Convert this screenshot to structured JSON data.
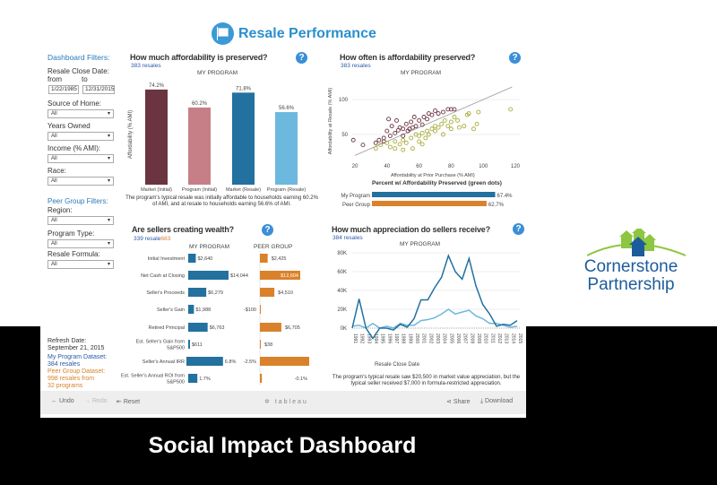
{
  "header": {
    "title": "Resale Performance",
    "icon": "for-sale-sign-icon"
  },
  "sidebar": {
    "dashboard_filters": "Dashboard Filters:",
    "resale_close_date": "Resale Close Date:",
    "from": "from",
    "to": "to",
    "from_value": "1/22/1985",
    "to_value": "12/31/2015",
    "source_of_home": "Source of Home:",
    "source_value": "All",
    "years_owned": "Years Owned",
    "years_value": "All",
    "income": "Income (% AMI):",
    "income_value": "All",
    "race": "Race:",
    "race_value": "All",
    "peer_filters": "Peer Group Filters:",
    "region": "Region:",
    "region_value": "All",
    "program_type": "Program Type:",
    "program_type_value": "All",
    "resale_formula": "Resale Formula:",
    "resale_formula_value": "All",
    "refresh_label": "Refresh Date:",
    "refresh_date": "September 21, 2015",
    "my_dataset_label": "My Program Dataset:",
    "my_dataset_value": "384 resales",
    "peer_dataset_label": "Peer Group Dataset:",
    "peer_dataset_value1": "998 resales from",
    "peer_dataset_value2": "32 programs"
  },
  "colors": {
    "blue": "#23719f",
    "lightblue": "#6cb8de",
    "maroon": "#6b3441",
    "pink": "#c77f87",
    "orange": "#d9822b",
    "olive": "#a8ad3a",
    "accent": "#2a8fcf"
  },
  "chart_data": [
    {
      "id": "affordability",
      "type": "bar",
      "title": "How much affordability is preserved?",
      "subtitle": "383 resales",
      "panel_label": "MY PROGRAM",
      "ylabel": "Affordability (% AMI)",
      "categories": [
        "Market (Initial)",
        "Program (Initial)",
        "Market (Resale)",
        "Program (Resale)"
      ],
      "values": [
        74.2,
        60.2,
        71.8,
        56.6
      ],
      "labels": [
        "74.2%",
        "60.2%",
        "71.8%",
        "56.6%"
      ],
      "caption": "The program's typical resale was initially affordable to households earning 60.2% of AMI, and at resale to households earning 56.6% of AMI."
    },
    {
      "id": "preserved",
      "type": "scatter",
      "title": "How often is affordability preserved?",
      "subtitle": "383 resales",
      "panel_label": "MY PROGRAM",
      "xlabel": "Affordability at Prior Purchase (% AMI)",
      "ylabel": "Affordability at Resale (% AMI)",
      "xlim": [
        20,
        120
      ],
      "ylim": [
        20,
        120
      ],
      "xticks": [
        "20",
        "40",
        "60",
        "80",
        "100",
        "120"
      ],
      "yticks": [
        "50",
        "100"
      ],
      "series": [
        {
          "color": "maroon",
          "points": [
            [
              19,
              42
            ],
            [
              25,
              35
            ],
            [
              33,
              38
            ],
            [
              35,
              42
            ],
            [
              38,
              45
            ],
            [
              40,
              55
            ],
            [
              41,
              72
            ],
            [
              43,
              62
            ],
            [
              45,
              52
            ],
            [
              46,
              70
            ],
            [
              48,
              60
            ],
            [
              50,
              58
            ],
            [
              50,
              48
            ],
            [
              52,
              65
            ],
            [
              53,
              55
            ],
            [
              55,
              68
            ],
            [
              56,
              60
            ],
            [
              57,
              75
            ],
            [
              58,
              62
            ],
            [
              60,
              70
            ],
            [
              62,
              64
            ],
            [
              63,
              75
            ],
            [
              65,
              72
            ],
            [
              66,
              80
            ],
            [
              68,
              78
            ],
            [
              70,
              84
            ],
            [
              72,
              80
            ],
            [
              75,
              82
            ],
            [
              78,
              86
            ],
            [
              80,
              86
            ],
            [
              82,
              86
            ],
            [
              38,
              40
            ],
            [
              42,
              48
            ],
            [
              47,
              56
            ],
            [
              54,
              58
            ]
          ]
        },
        {
          "color": "olive",
          "points": [
            [
              33,
              30
            ],
            [
              36,
              35
            ],
            [
              40,
              38
            ],
            [
              42,
              32
            ],
            [
              45,
              40
            ],
            [
              48,
              36
            ],
            [
              50,
              42
            ],
            [
              52,
              38
            ],
            [
              55,
              45
            ],
            [
              56,
              30
            ],
            [
              58,
              50
            ],
            [
              60,
              40
            ],
            [
              60,
              48
            ],
            [
              62,
              52
            ],
            [
              64,
              45
            ],
            [
              65,
              55
            ],
            [
              66,
              50
            ],
            [
              68,
              58
            ],
            [
              70,
              55
            ],
            [
              70,
              62
            ],
            [
              72,
              60
            ],
            [
              74,
              65
            ],
            [
              75,
              50
            ],
            [
              76,
              70
            ],
            [
              78,
              62
            ],
            [
              80,
              68
            ],
            [
              80,
              58
            ],
            [
              82,
              75
            ],
            [
              84,
              70
            ],
            [
              85,
              60
            ],
            [
              88,
              62
            ],
            [
              90,
              78
            ],
            [
              91,
              80
            ],
            [
              94,
              58
            ],
            [
              96,
              65
            ],
            [
              97,
              82
            ],
            [
              117,
              86
            ],
            [
              50,
              28
            ],
            [
              45,
              30
            ],
            [
              62,
              36
            ]
          ]
        }
      ],
      "pct_title": "Percent w/ Affordability Preserved (green dots)",
      "pct_bars": [
        {
          "name": "My Program",
          "value": 67.4,
          "label": "67.4%",
          "color": "blue"
        },
        {
          "name": "Peer Group",
          "value": 62.7,
          "label": "62.7%",
          "color": "orange"
        }
      ]
    },
    {
      "id": "wealth",
      "type": "bar",
      "title": "Are sellers creating wealth?",
      "subtitle_my": "339 resale",
      "subtitle_peer": "683",
      "series_labels": [
        "MY PROGRAM",
        "PEER GROUP"
      ],
      "rows": [
        {
          "label": "Initial Investment",
          "my": 2640,
          "my_label": "$2,640",
          "peer": 2425,
          "peer_label": "$2,425",
          "unit": "$"
        },
        {
          "label": "Net Cash at Closing",
          "my": 14044,
          "my_label": "$14,044",
          "peer": 12604,
          "peer_label": "$12,604",
          "unit": "$"
        },
        {
          "label": "Seller's Proceeds",
          "my": 6279,
          "my_label": "$6,279",
          "peer": 4510,
          "peer_label": "$4,510",
          "unit": "$"
        },
        {
          "label": "Seller's Gain",
          "my": 1988,
          "my_label": "$1,988",
          "peer": -100,
          "peer_label": "-$100",
          "unit": "$"
        },
        {
          "label": "Retired Principal",
          "my": 6763,
          "my_label": "$6,763",
          "peer": 6705,
          "peer_label": "$6,705",
          "unit": "$"
        },
        {
          "label": "Est. Seller's Gain from S&P500",
          "my": 611,
          "my_label": "$611",
          "peer": 38,
          "peer_label": "$38",
          "unit": "$"
        },
        {
          "label": "Seller's Annual IRR",
          "my": 6.8,
          "my_label": "6.8%",
          "peer": -2.5,
          "peer_label": "-2.5%",
          "unit": "%"
        },
        {
          "label": "Est. Seller's Annual ROI from S&P500",
          "my": 1.7,
          "my_label": "1.7%",
          "peer": -0.1,
          "peer_label": "-0.1%",
          "unit": "%"
        }
      ]
    },
    {
      "id": "appreciation",
      "type": "line",
      "title": "How much appreciation do sellers receive?",
      "subtitle": "384 resales",
      "panel_label": "MY PROGRAM",
      "xlabel": "Resale Close Date",
      "ylim": [
        -15,
        85
      ],
      "yticks": [
        "0K",
        "20K",
        "40K",
        "60K",
        "80K"
      ],
      "x": [
        "1991",
        "1992",
        "1993",
        "1994",
        "1995",
        "1996",
        "1997",
        "1998",
        "1999",
        "2000",
        "2001",
        "2002",
        "2003",
        "2004",
        "2005",
        "2006",
        "2007",
        "2008",
        "2009",
        "2010",
        "2011",
        "2012",
        "2013",
        "2014",
        "2015"
      ],
      "series": [
        {
          "color": "blue",
          "values": [
            0,
            31,
            0,
            -11,
            0,
            0,
            -2,
            4,
            1,
            10,
            30,
            30,
            43,
            54,
            77,
            60,
            52,
            74,
            45,
            25,
            15,
            2,
            4,
            3,
            8
          ]
        },
        {
          "color": "lightblue",
          "values": [
            2,
            3,
            0,
            5,
            0,
            2,
            0,
            5,
            3,
            3,
            8,
            9,
            11,
            15,
            20,
            15,
            17,
            19,
            13,
            10,
            5,
            5,
            3,
            1,
            2
          ]
        }
      ],
      "caption": "The program's typical resale saw $20,500 in market value appreciation, but the typical seller received $7,000 in formula-restricted appreciation."
    }
  ],
  "toolbar": {
    "undo": "Undo",
    "redo": "Redo",
    "reset": "Reset",
    "brand": "tableau",
    "share": "Share",
    "download": "Download"
  },
  "logo": {
    "line1": "Cornerstone",
    "line2": "Partnership"
  },
  "footer_title": "Social Impact Dashboard"
}
